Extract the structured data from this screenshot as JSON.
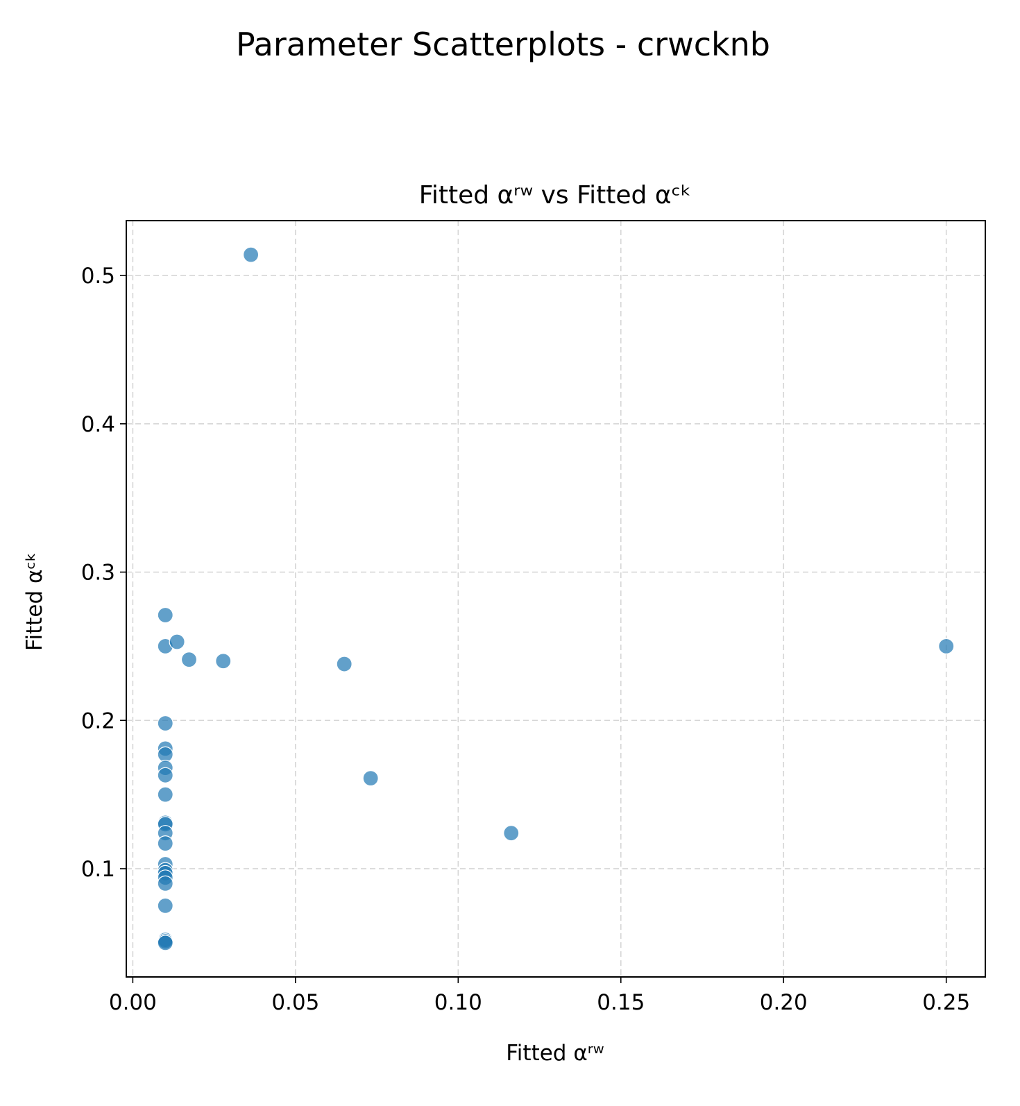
{
  "figure": {
    "suptitle": "Parameter Scatterplots - crwcknb"
  },
  "chart_data": {
    "type": "scatter",
    "title": "Fitted αʳʷ vs Fitted αᶜᵏ",
    "xlabel": "Fitted αʳʷ",
    "ylabel": "Fitted αᶜᵏ",
    "xlim": [
      -0.002,
      0.262
    ],
    "ylim": [
      0.027,
      0.537
    ],
    "x_ticks": [
      0.0,
      0.05,
      0.1,
      0.15,
      0.2,
      0.25
    ],
    "x_tick_labels": [
      "0.00",
      "0.05",
      "0.10",
      "0.15",
      "0.20",
      "0.25"
    ],
    "y_ticks": [
      0.1,
      0.2,
      0.3,
      0.4,
      0.5
    ],
    "y_tick_labels": [
      "0.1",
      "0.2",
      "0.3",
      "0.4",
      "0.5"
    ],
    "grid": true,
    "color": "#1f77b4",
    "alpha": 0.7,
    "points": [
      {
        "x": 0.0363,
        "y": 0.514
      },
      {
        "x": 0.25,
        "y": 0.25
      },
      {
        "x": 0.01,
        "y": 0.271
      },
      {
        "x": 0.01,
        "y": 0.25
      },
      {
        "x": 0.0136,
        "y": 0.253
      },
      {
        "x": 0.0173,
        "y": 0.241
      },
      {
        "x": 0.0278,
        "y": 0.24
      },
      {
        "x": 0.065,
        "y": 0.238
      },
      {
        "x": 0.0731,
        "y": 0.161
      },
      {
        "x": 0.1163,
        "y": 0.124
      },
      {
        "x": 0.01,
        "y": 0.198
      },
      {
        "x": 0.01,
        "y": 0.181
      },
      {
        "x": 0.01,
        "y": 0.177
      },
      {
        "x": 0.01,
        "y": 0.168
      },
      {
        "x": 0.01,
        "y": 0.163
      },
      {
        "x": 0.01,
        "y": 0.15
      },
      {
        "x": 0.01,
        "y": 0.131
      },
      {
        "x": 0.01,
        "y": 0.13
      },
      {
        "x": 0.01,
        "y": 0.124
      },
      {
        "x": 0.01,
        "y": 0.117
      },
      {
        "x": 0.01,
        "y": 0.103
      },
      {
        "x": 0.01,
        "y": 0.099
      },
      {
        "x": 0.01,
        "y": 0.097
      },
      {
        "x": 0.01,
        "y": 0.094
      },
      {
        "x": 0.01,
        "y": 0.09
      },
      {
        "x": 0.01,
        "y": 0.075
      },
      {
        "x": 0.01,
        "y": 0.052
      },
      {
        "x": 0.01,
        "y": 0.051
      },
      {
        "x": 0.01,
        "y": 0.05
      }
    ]
  }
}
